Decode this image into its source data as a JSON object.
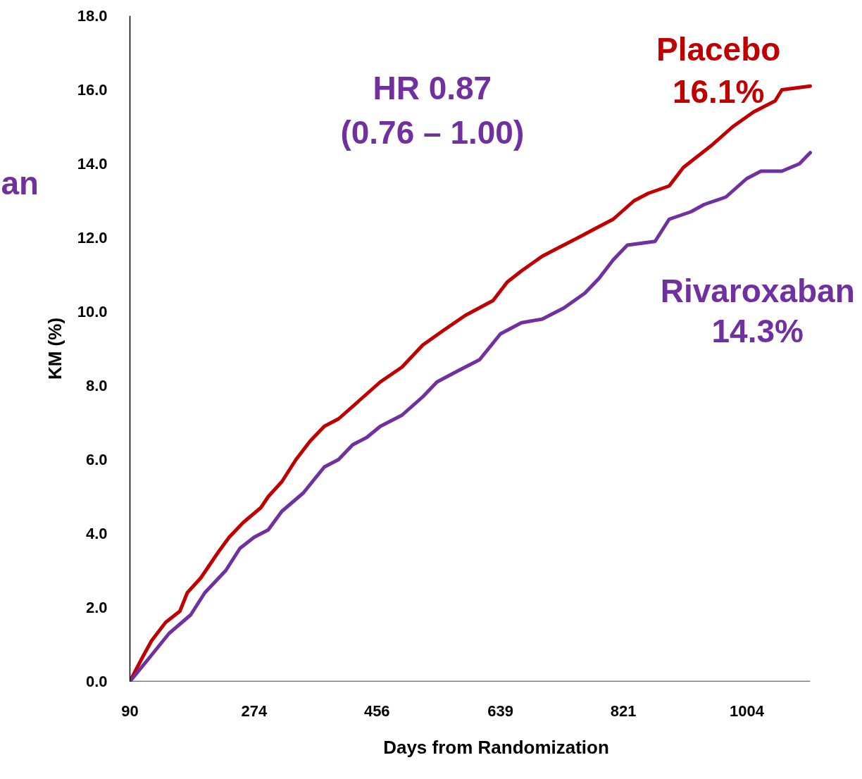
{
  "chart_data": {
    "type": "line",
    "xlabel": "Days from Randomization",
    "ylabel": "KM (%)",
    "xlim": [
      90,
      1098
    ],
    "ylim": [
      0,
      18
    ],
    "xticks": [
      90,
      274,
      456,
      639,
      821,
      1004
    ],
    "yticks": [
      {
        "value": 0,
        "label": "0.0"
      },
      {
        "value": 2,
        "label": "2.0"
      },
      {
        "value": 4,
        "label": "4.0"
      },
      {
        "value": 6,
        "label": "6.0"
      },
      {
        "value": 8,
        "label": "8.0"
      },
      {
        "value": 10,
        "label": "10.0"
      },
      {
        "value": 12,
        "label": "12.0"
      },
      {
        "value": 14,
        "label": "14.0"
      },
      {
        "value": 16,
        "label": "16.0"
      },
      {
        "value": 18,
        "label": "18.0"
      }
    ],
    "grid": false,
    "marker": "none",
    "line_style": "solid",
    "series": [
      {
        "name": "Placebo",
        "color": "#c00000",
        "x": [
          90,
          107,
          122,
          143,
          164,
          175,
          195,
          221,
          237,
          258,
          284,
          295,
          315,
          336,
          357,
          378,
          399,
          430,
          461,
          493,
          524,
          555,
          587,
          628,
          649,
          670,
          701,
          722,
          754,
          785,
          806,
          837,
          858,
          889,
          910,
          931,
          952,
          983,
          1014,
          1046,
          1056,
          1098
        ],
        "values": [
          0,
          0.6,
          1.1,
          1.6,
          1.9,
          2.4,
          2.8,
          3.5,
          3.9,
          4.3,
          4.7,
          5.0,
          5.4,
          6.0,
          6.5,
          6.9,
          7.1,
          7.6,
          8.1,
          8.5,
          9.1,
          9.5,
          9.9,
          10.3,
          10.8,
          11.1,
          11.5,
          11.7,
          12.0,
          12.3,
          12.5,
          13.0,
          13.2,
          13.4,
          13.9,
          14.2,
          14.5,
          15.0,
          15.4,
          15.7,
          16.0,
          16.1
        ]
      },
      {
        "name": "Rivaroxaban",
        "color": "#7030a0",
        "x": [
          90,
          117,
          148,
          180,
          201,
          232,
          253,
          274,
          295,
          315,
          347,
          378,
          399,
          420,
          441,
          461,
          493,
          524,
          545,
          576,
          608,
          639,
          670,
          701,
          733,
          764,
          785,
          806,
          827,
          868,
          889,
          921,
          941,
          973,
          1004,
          1025,
          1056,
          1082,
          1098
        ],
        "values": [
          0,
          0.6,
          1.3,
          1.8,
          2.4,
          3.0,
          3.6,
          3.9,
          4.1,
          4.6,
          5.1,
          5.8,
          6.0,
          6.4,
          6.6,
          6.9,
          7.2,
          7.7,
          8.1,
          8.4,
          8.7,
          9.4,
          9.7,
          9.8,
          10.1,
          10.5,
          10.9,
          11.4,
          11.8,
          11.9,
          12.5,
          12.7,
          12.9,
          13.1,
          13.6,
          13.8,
          13.8,
          14.0,
          14.3
        ]
      }
    ],
    "annotations": [
      "16.1%",
      "14.3%",
      "HR 0.87\n(0.76 – 1.00)",
      "an"
    ]
  }
}
